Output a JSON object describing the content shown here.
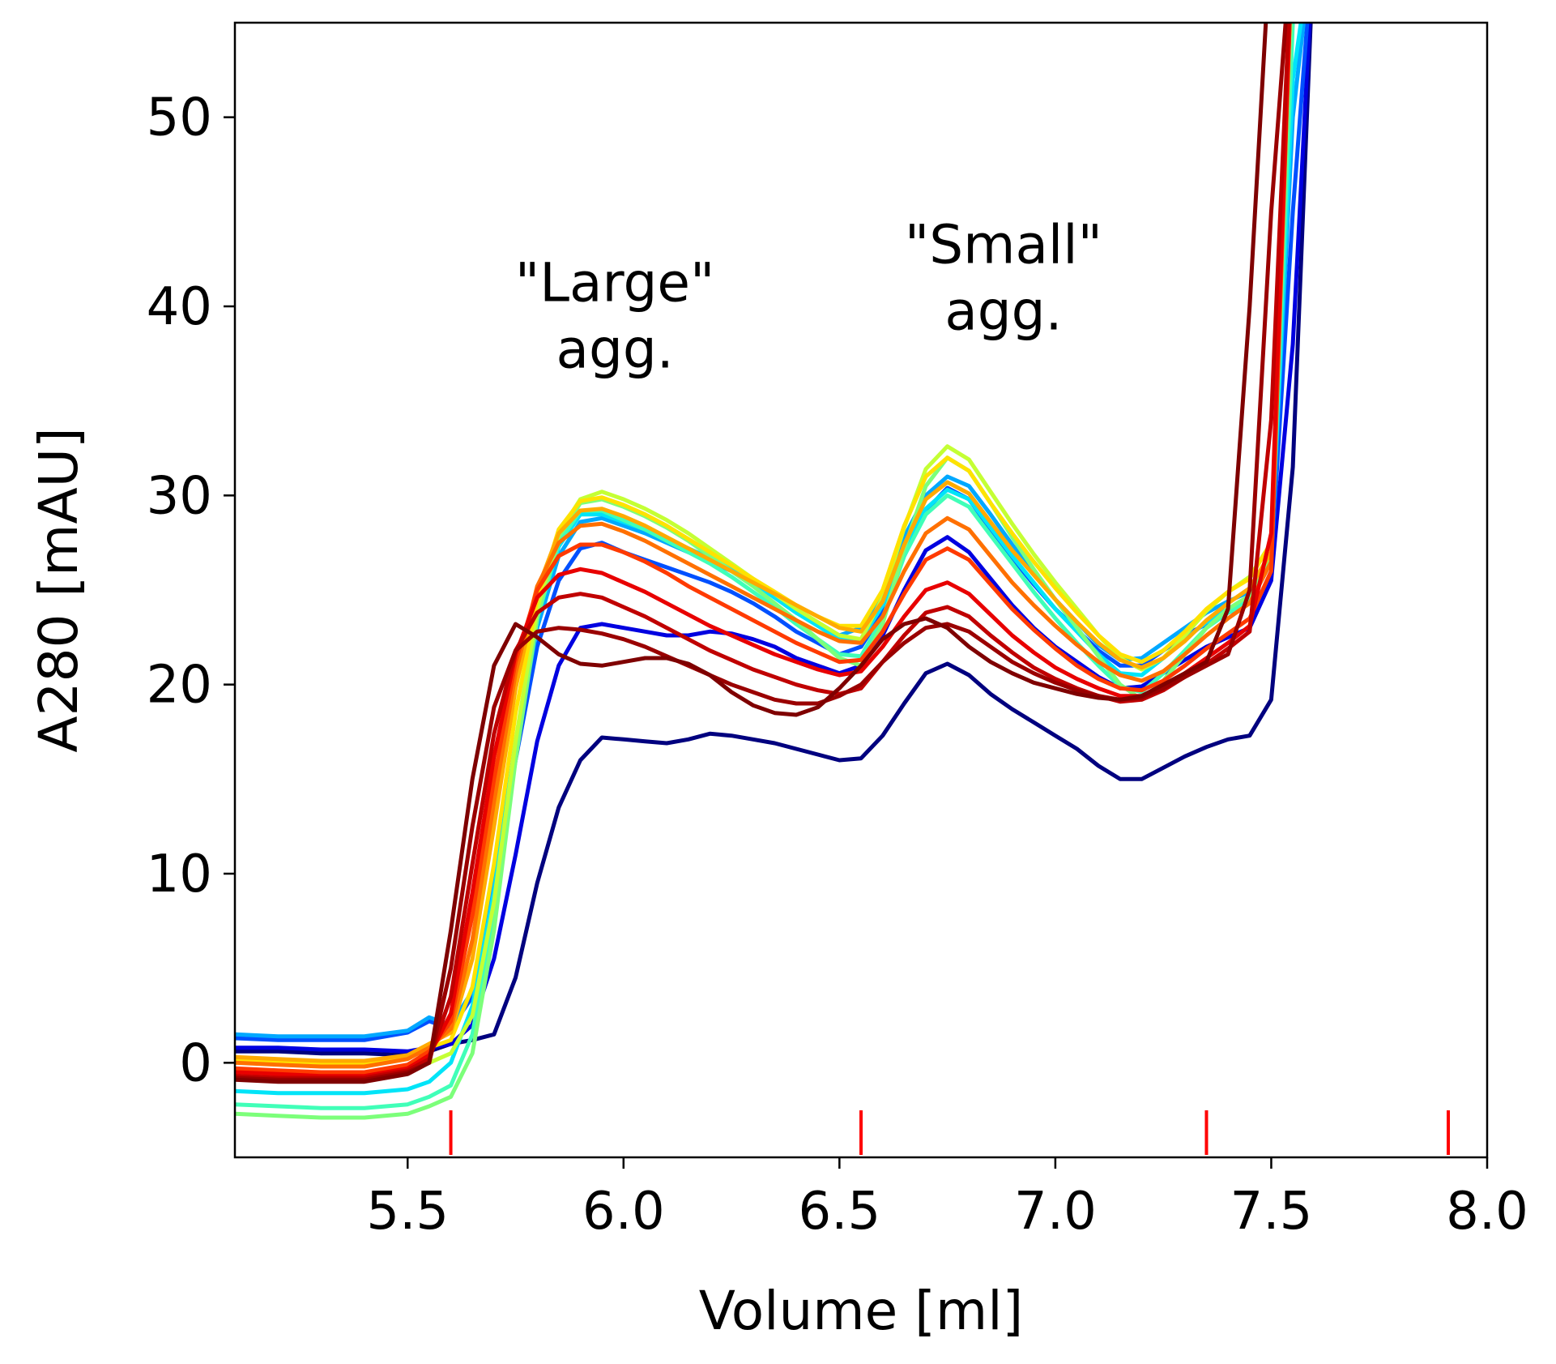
{
  "chart_data": {
    "type": "line",
    "title": "",
    "xlabel": "Volume [ml]",
    "ylabel": "A280 [mAU]",
    "xlim": [
      5.1,
      8.0
    ],
    "ylim": [
      -5,
      55
    ],
    "xticks": [
      5.5,
      6.0,
      6.5,
      7.0,
      7.5,
      8.0
    ],
    "xtick_labels": [
      "5.5",
      "6.0",
      "6.5",
      "7.0",
      "7.5",
      "8.0"
    ],
    "yticks": [
      0,
      10,
      20,
      30,
      40,
      50
    ],
    "ytick_labels": [
      "0",
      "10",
      "20",
      "30",
      "40",
      "50"
    ],
    "grid": false,
    "legend": "none",
    "colormap": "jet",
    "fraction_markers": {
      "color": "#ff0000",
      "x": [
        5.6,
        6.55,
        7.35,
        7.91
      ]
    },
    "annotations": [
      {
        "lines": [
          "\"Large\"",
          "agg."
        ],
        "x": 5.98,
        "y": 36
      },
      {
        "lines": [
          "\"Small\"",
          "agg."
        ],
        "x": 6.88,
        "y": 38
      }
    ],
    "x": [
      5.1,
      5.2,
      5.3,
      5.4,
      5.5,
      5.55,
      5.6,
      5.65,
      5.7,
      5.75,
      5.8,
      5.85,
      5.9,
      5.95,
      6.0,
      6.05,
      6.1,
      6.15,
      6.2,
      6.25,
      6.3,
      6.35,
      6.4,
      6.45,
      6.5,
      6.55,
      6.6,
      6.65,
      6.7,
      6.75,
      6.8,
      6.85,
      6.9,
      6.95,
      7.0,
      7.05,
      7.1,
      7.15,
      7.2,
      7.25,
      7.3,
      7.35,
      7.4,
      7.45,
      7.5,
      7.55,
      7.6,
      7.65,
      7.7,
      7.75,
      7.8,
      7.85,
      7.9
    ],
    "series": [
      {
        "color": "#00007f",
        "values": [
          0.6,
          0.6,
          0.5,
          0.5,
          0.4,
          0.6,
          1.0,
          1.2,
          1.5,
          4.5,
          9.5,
          13.5,
          16.0,
          17.2,
          17.1,
          17.0,
          16.9,
          17.1,
          17.4,
          17.3,
          17.1,
          16.9,
          16.6,
          16.3,
          16.0,
          16.1,
          17.3,
          19.0,
          20.6,
          21.1,
          20.5,
          19.5,
          18.7,
          18.0,
          17.3,
          16.6,
          15.7,
          15.0,
          15.0,
          15.6,
          16.2,
          16.7,
          17.1,
          17.3,
          19.2,
          31.5,
          60,
          60,
          60,
          60,
          60,
          60,
          60
        ]
      },
      {
        "color": "#0000e0",
        "values": [
          0.8,
          0.8,
          0.7,
          0.7,
          0.6,
          0.8,
          1.0,
          2.0,
          5.5,
          11.0,
          17.0,
          21.0,
          23.0,
          23.2,
          23.0,
          22.8,
          22.6,
          22.6,
          22.8,
          22.7,
          22.4,
          22.0,
          21.4,
          21.0,
          20.6,
          21.0,
          22.6,
          25.0,
          27.1,
          27.8,
          27.0,
          25.6,
          24.2,
          23.0,
          22.0,
          21.2,
          20.4,
          19.8,
          19.9,
          20.6,
          21.3,
          22.0,
          22.5,
          23.0,
          25.5,
          38,
          60,
          60,
          60,
          60,
          60,
          60,
          60
        ]
      },
      {
        "color": "#0050ff",
        "values": [
          1.3,
          1.2,
          1.2,
          1.2,
          1.6,
          2.2,
          1.8,
          3.5,
          9.0,
          16.0,
          22.0,
          25.5,
          27.2,
          27.5,
          27.0,
          26.6,
          26.2,
          25.8,
          25.4,
          24.9,
          24.3,
          23.6,
          22.8,
          22.2,
          21.6,
          22.0,
          23.8,
          26.8,
          29.2,
          30.4,
          29.8,
          28.2,
          26.7,
          25.3,
          24.0,
          22.9,
          21.8,
          21.0,
          21.0,
          21.8,
          22.6,
          23.2,
          23.8,
          24.3,
          26.5,
          45,
          60,
          60,
          60,
          60,
          60,
          60,
          60
        ]
      },
      {
        "color": "#00a8ff",
        "values": [
          1.5,
          1.4,
          1.4,
          1.4,
          1.7,
          2.4,
          2.0,
          3.8,
          9.5,
          16.8,
          23.0,
          26.8,
          28.6,
          28.8,
          28.4,
          28.0,
          27.5,
          27.0,
          26.5,
          26.0,
          25.4,
          24.6,
          23.8,
          23.2,
          22.6,
          23.0,
          24.8,
          27.8,
          30.0,
          31.0,
          30.5,
          29.0,
          27.4,
          25.9,
          24.5,
          23.3,
          22.1,
          21.3,
          21.4,
          22.2,
          23.0,
          23.8,
          24.4,
          24.9,
          27.0,
          50,
          60,
          60,
          60,
          60,
          60,
          60,
          60
        ]
      },
      {
        "color": "#00e4f8",
        "values": [
          -1.5,
          -1.6,
          -1.6,
          -1.6,
          -1.4,
          -1.0,
          0.0,
          3.0,
          9.0,
          17.0,
          23.5,
          27.3,
          29.0,
          29.0,
          28.6,
          28.2,
          27.7,
          27.2,
          26.7,
          26.1,
          25.4,
          24.6,
          23.8,
          23.1,
          22.4,
          22.4,
          24.2,
          27.2,
          29.3,
          30.3,
          29.8,
          28.3,
          26.8,
          25.4,
          24.0,
          22.8,
          21.6,
          20.6,
          20.5,
          21.4,
          22.4,
          23.3,
          24.0,
          24.6,
          26.8,
          52,
          60,
          60,
          60,
          60,
          60,
          60,
          60
        ]
      },
      {
        "color": "#40ffb8",
        "values": [
          -2.2,
          -2.3,
          -2.4,
          -2.4,
          -2.2,
          -1.8,
          -1.2,
          1.5,
          8.0,
          16.5,
          23.5,
          27.5,
          29.2,
          29.2,
          28.7,
          28.2,
          27.6,
          27.0,
          26.4,
          25.7,
          24.9,
          24.1,
          23.2,
          22.4,
          21.6,
          21.5,
          23.5,
          26.8,
          29.0,
          30.0,
          29.4,
          27.9,
          26.4,
          24.9,
          23.5,
          22.2,
          21.0,
          19.9,
          19.6,
          20.6,
          21.8,
          23.0,
          23.8,
          24.4,
          26.5,
          55,
          60,
          60,
          60,
          60,
          60,
          60,
          60
        ]
      },
      {
        "color": "#7cff7a",
        "values": [
          -2.7,
          -2.8,
          -2.9,
          -2.9,
          -2.7,
          -2.3,
          -1.8,
          0.5,
          7.0,
          16.0,
          23.5,
          27.8,
          29.6,
          29.8,
          29.4,
          28.9,
          28.3,
          27.6,
          26.8,
          26.0,
          25.2,
          24.3,
          23.4,
          22.4,
          21.4,
          21.0,
          23.2,
          27.2,
          30.5,
          32.0,
          31.3,
          29.6,
          27.8,
          26.1,
          24.5,
          23.0,
          21.5,
          20.0,
          19.2,
          20.2,
          21.6,
          23.0,
          24.0,
          24.7,
          26.8,
          58,
          60,
          60,
          60,
          60,
          60,
          60,
          60
        ]
      },
      {
        "color": "#c4ff34",
        "values": [
          -0.5,
          -0.6,
          -0.6,
          -0.6,
          -0.4,
          0.0,
          0.5,
          2.5,
          8.5,
          17.0,
          24.0,
          28.0,
          29.8,
          30.2,
          29.8,
          29.3,
          28.7,
          28.0,
          27.2,
          26.4,
          25.6,
          24.8,
          24.0,
          23.3,
          22.6,
          22.4,
          24.6,
          28.3,
          31.4,
          32.6,
          31.9,
          30.2,
          28.5,
          26.9,
          25.4,
          24.0,
          22.6,
          21.4,
          20.8,
          21.4,
          22.6,
          23.9,
          24.9,
          25.7,
          27.5,
          60,
          60,
          60,
          60,
          60,
          60,
          60,
          60
        ]
      },
      {
        "color": "#ffe200",
        "values": [
          0.2,
          0.1,
          0.0,
          0.0,
          0.3,
          0.8,
          1.2,
          4.0,
          10.5,
          18.5,
          24.5,
          28.2,
          29.7,
          29.9,
          29.5,
          29.0,
          28.4,
          27.7,
          27.0,
          26.3,
          25.6,
          24.9,
          24.2,
          23.6,
          23.1,
          23.1,
          25.0,
          28.4,
          31.0,
          32.0,
          31.3,
          29.6,
          28.0,
          26.5,
          25.1,
          23.8,
          22.6,
          21.6,
          21.2,
          21.8,
          22.8,
          24.0,
          24.9,
          25.6,
          27.5,
          60,
          60,
          60,
          60,
          60,
          60,
          60,
          60
        ]
      },
      {
        "color": "#ffaa00",
        "values": [
          0.3,
          0.2,
          0.1,
          0.1,
          0.4,
          1.0,
          1.6,
          5.5,
          12.5,
          19.8,
          25.0,
          28.0,
          29.2,
          29.3,
          28.9,
          28.4,
          27.8,
          27.2,
          26.6,
          26.0,
          25.4,
          24.8,
          24.2,
          23.6,
          23.0,
          22.8,
          24.4,
          27.4,
          29.8,
          30.7,
          30.1,
          28.6,
          27.1,
          25.8,
          24.5,
          23.3,
          22.2,
          21.3,
          20.9,
          21.4,
          22.3,
          23.4,
          24.3,
          25.1,
          27.0,
          60,
          60,
          60,
          60,
          60,
          60,
          60,
          60
        ]
      },
      {
        "color": "#ff7000",
        "values": [
          0.0,
          -0.1,
          -0.2,
          -0.2,
          0.2,
          0.8,
          1.8,
          6.5,
          13.8,
          20.6,
          25.2,
          27.5,
          28.4,
          28.5,
          28.1,
          27.6,
          27.0,
          26.4,
          25.8,
          25.2,
          24.6,
          24.0,
          23.4,
          22.8,
          22.3,
          22.2,
          23.6,
          26.0,
          28.0,
          28.8,
          28.2,
          26.8,
          25.4,
          24.2,
          23.1,
          22.1,
          21.2,
          20.5,
          20.2,
          20.7,
          21.6,
          22.6,
          23.5,
          24.3,
          26.5,
          60,
          60,
          60,
          60,
          60,
          60,
          60,
          60
        ]
      },
      {
        "color": "#ff3a00",
        "values": [
          -0.3,
          -0.4,
          -0.5,
          -0.5,
          -0.1,
          0.6,
          2.2,
          7.8,
          15.0,
          21.2,
          25.0,
          26.8,
          27.4,
          27.4,
          27.0,
          26.5,
          25.9,
          25.2,
          24.6,
          24.0,
          23.4,
          22.8,
          22.2,
          21.7,
          21.2,
          21.3,
          22.8,
          24.8,
          26.6,
          27.2,
          26.6,
          25.3,
          24.0,
          22.9,
          21.9,
          21.0,
          20.3,
          19.8,
          19.7,
          20.2,
          21.0,
          21.9,
          22.7,
          23.5,
          26.0,
          60,
          60,
          60,
          60,
          60,
          60,
          60,
          60
        ]
      },
      {
        "color": "#e80000",
        "values": [
          -0.5,
          -0.6,
          -0.7,
          -0.7,
          -0.3,
          0.4,
          2.6,
          9.0,
          16.2,
          21.6,
          24.6,
          25.8,
          26.1,
          25.9,
          25.4,
          24.9,
          24.3,
          23.7,
          23.1,
          22.6,
          22.1,
          21.6,
          21.2,
          20.8,
          20.5,
          20.7,
          22.0,
          23.6,
          25.0,
          25.4,
          24.8,
          23.7,
          22.6,
          21.7,
          20.9,
          20.3,
          19.8,
          19.4,
          19.4,
          19.9,
          20.6,
          21.4,
          22.2,
          23.1,
          28.0,
          60,
          60,
          60,
          60,
          60,
          60,
          60,
          60
        ]
      },
      {
        "color": "#c00000",
        "values": [
          -0.7,
          -0.8,
          -0.8,
          -0.8,
          -0.4,
          0.2,
          3.5,
          10.5,
          17.4,
          21.8,
          23.8,
          24.6,
          24.8,
          24.6,
          24.1,
          23.6,
          23.0,
          22.4,
          21.8,
          21.3,
          20.8,
          20.4,
          20.0,
          19.7,
          19.5,
          19.8,
          21.2,
          22.6,
          23.8,
          24.1,
          23.6,
          22.6,
          21.7,
          20.9,
          20.3,
          19.8,
          19.4,
          19.1,
          19.2,
          19.7,
          20.4,
          21.1,
          21.9,
          22.8,
          34.0,
          60,
          60,
          60,
          60,
          60,
          60,
          60,
          60
        ]
      },
      {
        "color": "#9a0000",
        "values": [
          -0.8,
          -0.9,
          -0.9,
          -0.9,
          -0.5,
          0.0,
          5.0,
          12.5,
          18.8,
          21.8,
          22.8,
          23.0,
          22.9,
          22.7,
          22.4,
          22.0,
          21.5,
          21.0,
          20.5,
          20.0,
          19.6,
          19.2,
          19.0,
          19.0,
          19.4,
          20.0,
          21.2,
          22.2,
          23.0,
          23.2,
          22.8,
          22.0,
          21.2,
          20.6,
          20.1,
          19.7,
          19.4,
          19.2,
          19.3,
          19.8,
          20.4,
          21.0,
          21.6,
          25.0,
          45.0,
          60,
          60,
          60,
          60,
          60,
          60,
          60,
          60
        ]
      },
      {
        "color": "#7f0000",
        "values": [
          -0.9,
          -1.0,
          -1.0,
          -1.0,
          -0.6,
          0.0,
          7.0,
          15.0,
          21.0,
          23.2,
          22.5,
          21.6,
          21.1,
          21.0,
          21.2,
          21.4,
          21.4,
          21.1,
          20.5,
          19.6,
          18.9,
          18.5,
          18.4,
          18.8,
          19.8,
          21.0,
          22.4,
          23.2,
          23.5,
          23.0,
          22.0,
          21.2,
          20.6,
          20.1,
          19.8,
          19.5,
          19.3,
          19.2,
          19.4,
          20.0,
          20.6,
          21.2,
          24.0,
          40.0,
          60,
          60,
          60,
          60,
          60,
          60,
          60,
          60,
          60
        ]
      }
    ]
  }
}
